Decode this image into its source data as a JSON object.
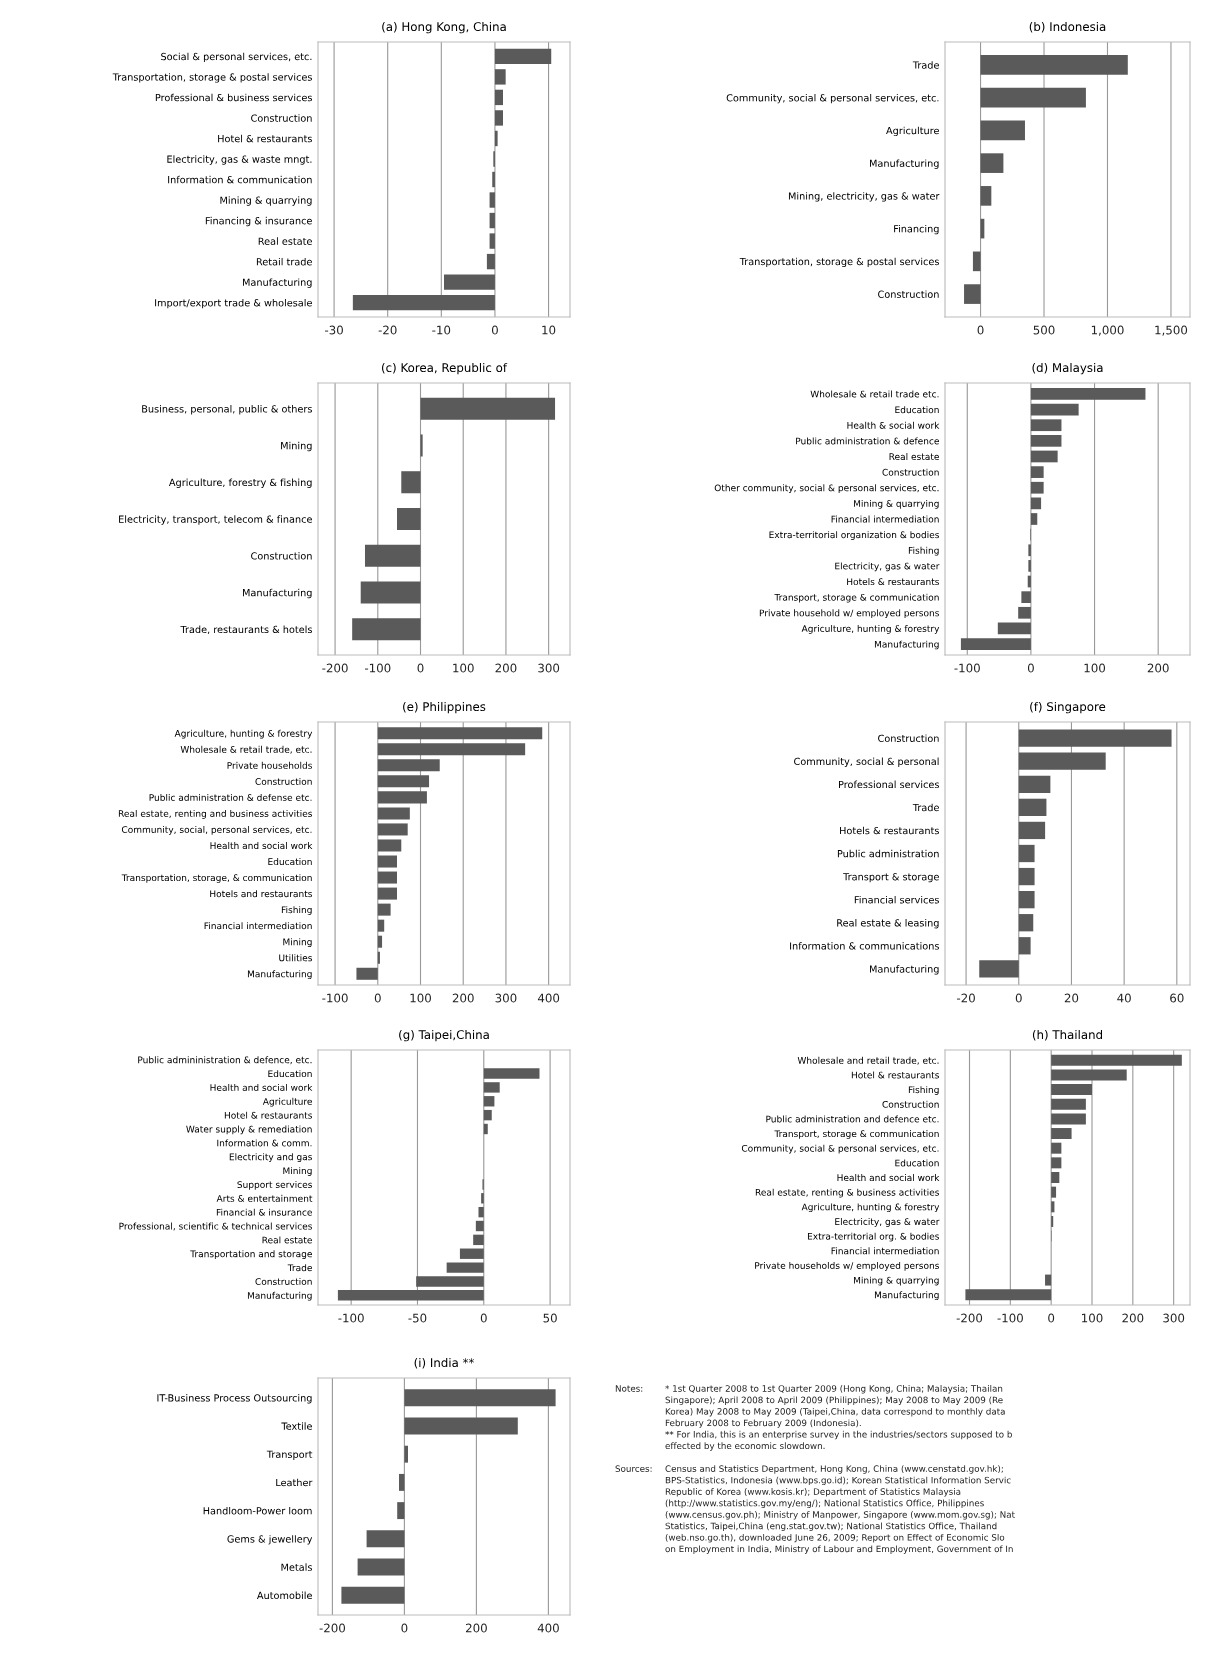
{
  "chart_data": [
    {
      "type": "bar",
      "orientation": "horizontal",
      "title": "(a) Hong Kong, China",
      "color": "#5a5a5a",
      "grid": "x",
      "xlim": [
        -33,
        14
      ],
      "xticks": [
        -30,
        -20,
        -10,
        0,
        10
      ],
      "categories": [
        "Social & personal services, etc.",
        "Transportation, storage & postal services",
        "Professional & business services",
        "Construction",
        "Hotel & restaurants",
        "Electricity, gas & waste mngt.",
        "Information & communication",
        "Mining & quarrying",
        "Financing & insurance",
        "Real estate",
        "Retail trade",
        "Manufacturing",
        "Import/export trade & wholesale"
      ],
      "values": [
        10.5,
        2,
        1.5,
        1.5,
        0.5,
        -0.3,
        -0.5,
        -1,
        -1,
        -1,
        -1.5,
        -9.5,
        -26.5
      ]
    },
    {
      "type": "bar",
      "orientation": "horizontal",
      "title": "(b) Indonesia",
      "color": "#5a5a5a",
      "grid": "x",
      "xlim": [
        -280,
        1650
      ],
      "xticks": [
        0,
        500,
        {
          "value": 1000,
          "label": "1,000"
        },
        {
          "value": 1500,
          "label": "1,500"
        }
      ],
      "categories": [
        "Trade",
        "Community, social & personal services, etc.",
        "Agriculture",
        "Manufacturing",
        "Mining, electricity, gas & water",
        "Financing",
        "Transportation, storage & postal services",
        "Construction"
      ],
      "values": [
        1160,
        830,
        350,
        180,
        85,
        30,
        -60,
        -130
      ]
    },
    {
      "type": "bar",
      "orientation": "horizontal",
      "title": "(c) Korea, Republic of",
      "color": "#5a5a5a",
      "grid": "x",
      "xlim": [
        -240,
        350
      ],
      "xticks": [
        -200,
        -100,
        0,
        100,
        200,
        300
      ],
      "categories": [
        "Business, personal, public & others",
        "Mining",
        "Agriculture, forestry & fishing",
        "Electricity, transport, telecom & finance",
        "Construction",
        "Manufacturing",
        "Trade, restaurants & hotels"
      ],
      "values": [
        315,
        5,
        -45,
        -55,
        -130,
        -140,
        -160
      ]
    },
    {
      "type": "bar",
      "orientation": "horizontal",
      "title": "(d) Malaysia",
      "color": "#5a5a5a",
      "grid": "x",
      "xlim": [
        -135,
        250
      ],
      "xticks": [
        -100,
        0,
        100,
        200
      ],
      "categories": [
        "Wholesale & retail trade etc.",
        "Education",
        "Health & social work",
        "Public administration & defence",
        "Real estate",
        "Construction",
        "Other community, social & personal services, etc.",
        "Mining & quarrying",
        "Financial intermediation",
        "Extra-territorial organization & bodies",
        "Fishing",
        "Electricity, gas & water",
        "Hotels & restaurants",
        "Transport, storage & communication",
        "Private household w/ employed persons",
        "Agriculture, hunting & forestry",
        "Manufacturing"
      ],
      "values": [
        180,
        75,
        48,
        48,
        42,
        20,
        20,
        16,
        10,
        -1,
        -4,
        -4,
        -5,
        -15,
        -20,
        -52,
        -110
      ]
    },
    {
      "type": "bar",
      "orientation": "horizontal",
      "title": "(e) Philippines",
      "color": "#5a5a5a",
      "grid": "x",
      "xlim": [
        -140,
        450
      ],
      "xticks": [
        -100,
        0,
        100,
        200,
        300,
        400
      ],
      "categories": [
        "Agriculture, hunting & forestry",
        "Wholesale & retail trade, etc.",
        "Private households",
        "Construction",
        "Public administration & defense etc.",
        "Real estate, renting and business activities",
        "Community, social, personal services, etc.",
        "Health and social work",
        "Education",
        "Transportation, storage, & communication",
        "Hotels and restaurants",
        "Fishing",
        "Financial intermediation",
        "Mining",
        "Utilities",
        "Manufacturing"
      ],
      "values": [
        385,
        345,
        145,
        120,
        115,
        75,
        70,
        55,
        45,
        45,
        45,
        30,
        15,
        10,
        5,
        -50
      ]
    },
    {
      "type": "bar",
      "orientation": "horizontal",
      "title": "(f) Singapore",
      "color": "#5a5a5a",
      "grid": "x",
      "xlim": [
        -28,
        65
      ],
      "xticks": [
        -20,
        0,
        20,
        40,
        60
      ],
      "categories": [
        "Construction",
        "Community, social & personal",
        "Professional services",
        "Trade",
        "Hotels & restaurants",
        "Public administration",
        "Transport & storage",
        "Financial services",
        "Real estate & leasing",
        "Information & communications",
        "Manufacturing"
      ],
      "values": [
        58,
        33,
        12,
        10.5,
        10,
        6,
        6,
        6,
        5.5,
        4.5,
        -15
      ]
    },
    {
      "type": "bar",
      "orientation": "horizontal",
      "title": "(g) Taipei,China",
      "color": "#5a5a5a",
      "grid": "x",
      "xlim": [
        -125,
        65
      ],
      "xticks": [
        -100,
        -50,
        0,
        50
      ],
      "categories": [
        "Public admininistration & defence, etc.",
        "Education",
        "Health and social work",
        "Agriculture",
        "Hotel & restaurants",
        "Water supply & remediation",
        "Information & comm.",
        "Electricity and gas",
        "Mining",
        "Support services",
        "Arts & entertainment",
        "Financial & insurance",
        "Professional, scientific & technical services",
        "Real estate",
        "Transportation and storage",
        "Trade",
        "Construction",
        "Manufacturing"
      ],
      "values": [
        0,
        42,
        12,
        8,
        6,
        3,
        0,
        0,
        0,
        -1,
        -2,
        -4,
        -6,
        -8,
        -18,
        -28,
        -51,
        -110
      ]
    },
    {
      "type": "bar",
      "orientation": "horizontal",
      "title": "(h) Thailand",
      "color": "#5a5a5a",
      "grid": "x",
      "xlim": [
        -260,
        340
      ],
      "xticks": [
        -200,
        -100,
        0,
        100,
        200,
        300
      ],
      "categories": [
        "Wholesale and retail trade, etc.",
        "Hotel & restaurants",
        "Fishing",
        "Construction",
        "Public administration and defence etc.",
        "Transport, storage & communication",
        "Community, social & personal services, etc.",
        "Education",
        "Health and social work",
        "Real estate, renting & business activities",
        "Agriculture, hunting & forestry",
        "Electricity, gas & water",
        "Extra-territorial org. & bodies",
        "Financial intermediation",
        "Private households w/ employed persons",
        "Mining & quarrying",
        "Manufacturing"
      ],
      "values": [
        320,
        185,
        100,
        85,
        85,
        50,
        25,
        25,
        20,
        12,
        8,
        5,
        1,
        0,
        0,
        -15,
        -210
      ]
    },
    {
      "type": "bar",
      "orientation": "horizontal",
      "title": "(i) India **",
      "color": "#5a5a5a",
      "grid": "x",
      "xlim": [
        -240,
        460
      ],
      "xticks": [
        -200,
        0,
        200,
        400
      ],
      "categories": [
        "IT-Business Process Outsourcing",
        "Textile",
        "Transport",
        "Leather",
        "Handloom-Power loom",
        "Gems & jewellery",
        "Metals",
        "Automobile"
      ],
      "values": [
        420,
        315,
        10,
        -15,
        -20,
        -105,
        -130,
        -175
      ],
      "annotations": [
        "Notes:",
        "* 1st Quarter 2008 to 1st Quarter 2009 (Hong Kong, China; Malaysia; Thailan\nSingapore); April 2008 to April 2009 (Philippines); May 2008 to May 2009 (Re\nKorea) May 2008 to May 2009 (Taipei,China, data correspond to monthly data\nFebruary 2008 to February 2009 (Indonesia).\n** For India, this is an enterprise survey in the industries/sectors supposed to b\neffected by the economic slowdown.",
        "Sources:",
        "Census and Statistics Department, Hong Kong, China (www.censtatd.gov.hk);\nBPS-Statistics, Indonesia (www.bps.go.id); Korean Statistical Information Servic\nRepublic of Korea (www.kosis.kr); Department of Statistics Malaysia\n(http://www.statistics.gov.my/eng/); National Statistics Office, Philippines\n(www.census.gov.ph); Ministry of Manpower, Singapore (www.mom.gov.sg); Nat\nStatistics, Taipei,China (eng.stat.gov.tw); National Statistics Office, Thailand\n(web.nso.go.th), downloaded June 26, 2009; Report on Effect of Economic Slo\non Employment in India, Ministry of Labour and Employment, Government of In"
      ]
    }
  ]
}
